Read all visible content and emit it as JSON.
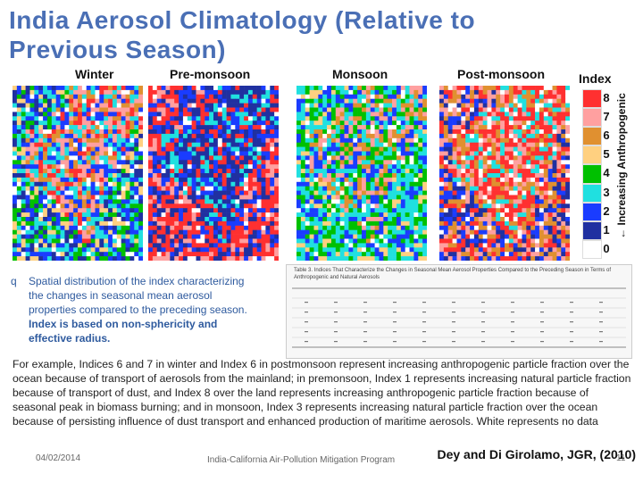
{
  "title": "India Aerosol Climatology (Relative to Previous Season)",
  "seasons": [
    "Winter",
    "Pre-monsoon",
    "Monsoon",
    "Post-monsoon"
  ],
  "index": {
    "label": "Index",
    "values": [
      "8",
      "7",
      "6",
      "5",
      "4",
      "3",
      "2",
      "1",
      "0"
    ],
    "colors": [
      "#ff3030",
      "#ffa0a0",
      "#e09030",
      "#ffd080",
      "#00c000",
      "#20e0e0",
      "#1a3cff",
      "#2030a0",
      "#ffffff"
    ],
    "axis_label": "Increasing Anthropogenic"
  },
  "bullet": {
    "marker": "q",
    "lines": [
      "Spatial distribution of the index characterizing",
      "the changes in seasonal mean aerosol",
      "properties compared to the preceding season."
    ],
    "bold_lines": [
      "Index is based on non-sphericity and",
      "effective radius."
    ]
  },
  "table_caption": "Table 3. Indices That Characterize the Changes in Seasonal Mean Aerosol Properties Compared to the Preceding Season in Terms of Anthropogenic and Natural Aerosols",
  "paragraph": "For example, Indices 6 and 7 in winter and Index 6 in postmonsoon represent increasing anthropogenic particle fraction over the ocean because of transport of aerosols from the mainland; in premonsoon, Index 1 represents increasing natural particle fraction because of transport of dust, and Index 8 over the land represents increasing anthropogenic particle fraction because of seasonal peak in biomass burning; and in monsoon, Index 3 represents increasing natural particle fraction over the ocean because of persisting influence of dust transport and enhanced production of maritime aerosols. White represents no data",
  "citation": "Dey and Di Girolamo, JGR, (2010)",
  "footer": {
    "date": "04/02/2014",
    "center": "India-California Air-Pollution Mitigation Program",
    "page": "11"
  }
}
